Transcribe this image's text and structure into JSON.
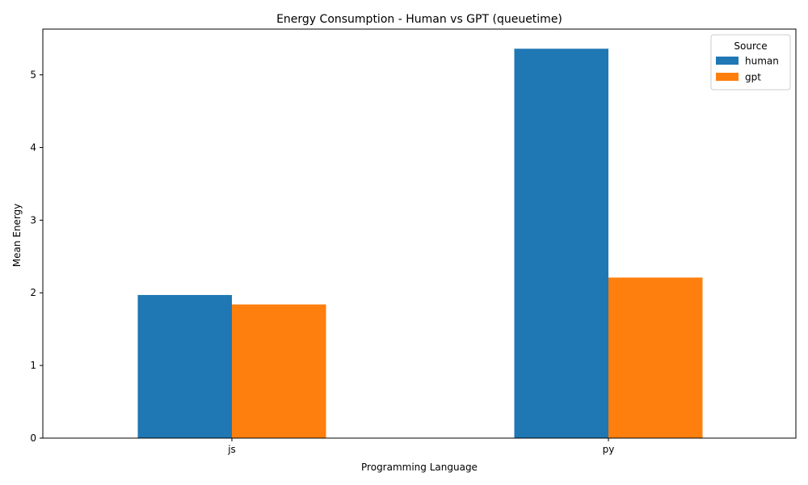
{
  "chart_data": {
    "type": "bar",
    "title": "Energy Consumption - Human vs GPT (queuetime)",
    "xlabel": "Programming Language",
    "ylabel": "Mean Energy",
    "categories": [
      "js",
      "py"
    ],
    "series": [
      {
        "name": "human",
        "values": [
          1.97,
          5.36
        ],
        "color": "#1f77b4"
      },
      {
        "name": "gpt",
        "values": [
          1.84,
          2.21
        ],
        "color": "#ff7f0e"
      }
    ],
    "ylim": [
      0,
      5.63
    ],
    "yticks": [
      0,
      1,
      2,
      3,
      4,
      5
    ],
    "grid": false,
    "legend": {
      "title": "Source",
      "placement": "top-right"
    }
  }
}
